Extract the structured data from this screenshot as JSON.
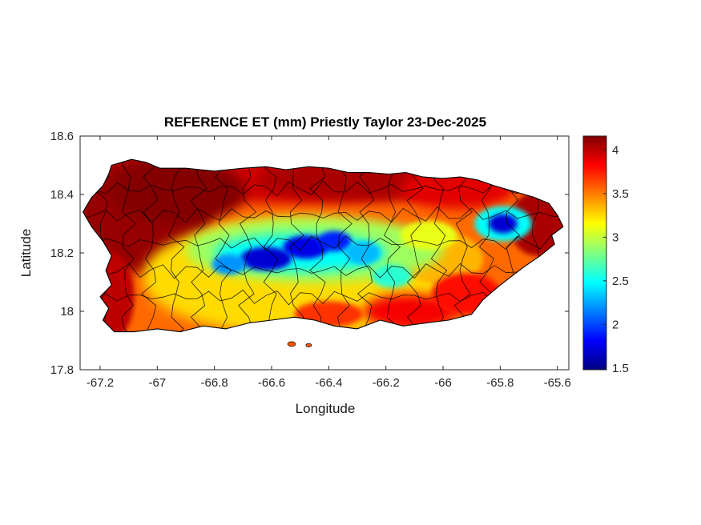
{
  "figure": {
    "title": "REFERENCE ET (mm) Priestly Taylor 23-Dec-2025",
    "xlabel": "Longitude",
    "ylabel": "Latitude",
    "background": "#ffffff"
  },
  "chart_data": {
    "type": "heatmap",
    "title": "REFERENCE ET (mm) Priestly Taylor 23-Dec-2025",
    "xlabel": "Longitude",
    "ylabel": "Latitude",
    "region": "Puerto Rico municipalities map",
    "xlim": [
      -67.27,
      -65.56
    ],
    "ylim": [
      17.8,
      18.6
    ],
    "xticks": [
      -67.2,
      -67,
      -66.8,
      -66.6,
      -66.4,
      -66.2,
      -66,
      -65.8,
      -65.6
    ],
    "xtick_labels": [
      "-67.2",
      "-67",
      "-66.8",
      "-66.6",
      "-66.4",
      "-66.2",
      "-66",
      "-65.8",
      "-65.6"
    ],
    "yticks": [
      17.8,
      18,
      18.2,
      18.4,
      18.6
    ],
    "ytick_labels": [
      "17.8",
      "18",
      "18.2",
      "18.4",
      "18.6"
    ],
    "grid": false,
    "colormap": "jet",
    "colorbar": {
      "position": "right",
      "min": 1.48,
      "max": 4.16,
      "ticks": [
        1.5,
        2,
        2.5,
        3,
        3.5,
        4
      ],
      "tick_labels": [
        "1.5",
        "2",
        "2.5",
        "3",
        "3.5",
        "4"
      ]
    },
    "axis_color": "#262626",
    "boundary_color": "#000000",
    "base_value": 3.55,
    "field_summary": [
      {
        "name": "north-coast-red-band",
        "lon": -66.55,
        "lat": 18.47,
        "rx": 0.75,
        "ry": 0.1,
        "v": 3.95
      },
      {
        "name": "north-central-dark-red",
        "lon": -66.3,
        "lat": 18.45,
        "rx": 0.35,
        "ry": 0.07,
        "v": 4.05
      },
      {
        "name": "west-dark-red-block",
        "lon": -67.05,
        "lat": 18.33,
        "rx": 0.24,
        "ry": 0.2,
        "v": 4.1
      },
      {
        "name": "northwest-darkest",
        "lon": -66.93,
        "lat": 18.41,
        "rx": 0.24,
        "ry": 0.11,
        "v": 4.15
      },
      {
        "name": "southwest-coast-red",
        "lon": -67.18,
        "lat": 18.05,
        "rx": 0.1,
        "ry": 0.16,
        "v": 4.0
      },
      {
        "name": "northeast-coast-red",
        "lon": -65.95,
        "lat": 18.42,
        "rx": 0.2,
        "ry": 0.07,
        "v": 3.9
      },
      {
        "name": "east-tip-dark-red",
        "lon": -65.67,
        "lat": 18.3,
        "rx": 0.1,
        "ry": 0.11,
        "v": 4.05
      },
      {
        "name": "southwest-central-orange",
        "lon": -66.85,
        "lat": 18.05,
        "rx": 0.18,
        "ry": 0.09,
        "v": 3.5
      },
      {
        "name": "central-yellow-field",
        "lon": -66.5,
        "lat": 18.12,
        "rx": 0.55,
        "ry": 0.2,
        "v": 3.25
      },
      {
        "name": "east-central-yellow",
        "lon": -66.0,
        "lat": 18.18,
        "rx": 0.14,
        "ry": 0.09,
        "v": 3.35
      },
      {
        "name": "cordillera-green-band",
        "lon": -66.45,
        "lat": 18.21,
        "rx": 0.45,
        "ry": 0.11,
        "v": 2.9
      },
      {
        "name": "cordillera-ne-green",
        "lon": -66.05,
        "lat": 18.26,
        "rx": 0.1,
        "ry": 0.05,
        "v": 3.1
      },
      {
        "name": "cordillera-cyan-band",
        "lon": -66.5,
        "lat": 18.2,
        "rx": 0.3,
        "ry": 0.065,
        "v": 2.5
      },
      {
        "name": "cordillera-deep-blue-1",
        "lon": -66.62,
        "lat": 18.18,
        "rx": 0.09,
        "ry": 0.04,
        "v": 1.7
      },
      {
        "name": "cordillera-deep-blue-2",
        "lon": -66.48,
        "lat": 18.22,
        "rx": 0.08,
        "ry": 0.04,
        "v": 1.75
      },
      {
        "name": "cordillera-blue-3",
        "lon": -66.38,
        "lat": 18.24,
        "rx": 0.06,
        "ry": 0.035,
        "v": 1.9
      },
      {
        "name": "cordillera-blue-west",
        "lon": -66.75,
        "lat": 18.16,
        "rx": 0.06,
        "ry": 0.035,
        "v": 2.2
      },
      {
        "name": "cordillera-blue-east",
        "lon": -66.28,
        "lat": 18.2,
        "rx": 0.06,
        "ry": 0.04,
        "v": 2.3
      },
      {
        "name": "cayey-cyan-spot",
        "lon": -66.18,
        "lat": 18.12,
        "rx": 0.07,
        "ry": 0.04,
        "v": 2.6
      },
      {
        "name": "el-yunque-cyan-ring",
        "lon": -65.79,
        "lat": 18.3,
        "rx": 0.1,
        "ry": 0.06,
        "v": 2.5
      },
      {
        "name": "el-yunque-blue-core",
        "lon": -65.79,
        "lat": 18.3,
        "rx": 0.05,
        "ry": 0.033,
        "v": 1.7
      },
      {
        "name": "south-coast-red-patch",
        "lon": -66.12,
        "lat": 18.0,
        "rx": 0.16,
        "ry": 0.06,
        "v": 3.85
      },
      {
        "name": "southeast-red-patch",
        "lon": -65.92,
        "lat": 18.06,
        "rx": 0.12,
        "ry": 0.07,
        "v": 3.8
      },
      {
        "name": "south-central-orange",
        "lon": -66.4,
        "lat": 17.99,
        "rx": 0.12,
        "ry": 0.045,
        "v": 3.7
      }
    ],
    "coastline": [
      [
        -67.16,
        18.5
      ],
      [
        -67.09,
        18.52
      ],
      [
        -67.04,
        18.51
      ],
      [
        -66.99,
        18.49
      ],
      [
        -66.9,
        18.49
      ],
      [
        -66.8,
        18.48
      ],
      [
        -66.7,
        18.49
      ],
      [
        -66.62,
        18.495
      ],
      [
        -66.55,
        18.485
      ],
      [
        -66.47,
        18.495
      ],
      [
        -66.4,
        18.49
      ],
      [
        -66.33,
        18.475
      ],
      [
        -66.26,
        18.475
      ],
      [
        -66.19,
        18.47
      ],
      [
        -66.13,
        18.475
      ],
      [
        -66.07,
        18.46
      ],
      [
        -66.0,
        18.455
      ],
      [
        -65.94,
        18.46
      ],
      [
        -65.88,
        18.45
      ],
      [
        -65.82,
        18.43
      ],
      [
        -65.75,
        18.41
      ],
      [
        -65.68,
        18.39
      ],
      [
        -65.63,
        18.37
      ],
      [
        -65.6,
        18.33
      ],
      [
        -65.58,
        18.29
      ],
      [
        -65.62,
        18.26
      ],
      [
        -65.61,
        18.23
      ],
      [
        -65.66,
        18.19
      ],
      [
        -65.72,
        18.15
      ],
      [
        -65.8,
        18.09
      ],
      [
        -65.86,
        18.04
      ],
      [
        -65.9,
        17.99
      ],
      [
        -65.98,
        17.97
      ],
      [
        -66.06,
        17.96
      ],
      [
        -66.14,
        17.95
      ],
      [
        -66.22,
        17.97
      ],
      [
        -66.3,
        17.94
      ],
      [
        -66.38,
        17.95
      ],
      [
        -66.45,
        17.97
      ],
      [
        -66.52,
        17.98
      ],
      [
        -66.6,
        17.97
      ],
      [
        -66.68,
        17.96
      ],
      [
        -66.76,
        17.94
      ],
      [
        -66.84,
        17.95
      ],
      [
        -66.92,
        17.93
      ],
      [
        -67.0,
        17.94
      ],
      [
        -67.08,
        17.93
      ],
      [
        -67.15,
        17.93
      ],
      [
        -67.19,
        17.97
      ],
      [
        -67.17,
        18.01
      ],
      [
        -67.2,
        18.05
      ],
      [
        -67.16,
        18.09
      ],
      [
        -67.18,
        18.14
      ],
      [
        -67.16,
        18.19
      ],
      [
        -67.19,
        18.24
      ],
      [
        -67.23,
        18.29
      ],
      [
        -67.26,
        18.34
      ],
      [
        -67.23,
        18.39
      ],
      [
        -67.19,
        18.43
      ],
      [
        -67.17,
        18.47
      ]
    ],
    "islets": [
      {
        "lon": -66.53,
        "lat": 17.888,
        "r": 0.014,
        "v": 3.6
      },
      {
        "lon": -66.47,
        "lat": 17.884,
        "r": 0.01,
        "v": 3.6
      }
    ],
    "boundaries": {
      "vertical_count": 20,
      "vertical_start_lon": -67.19,
      "vertical_spacing": 0.084,
      "horizontal_lats": [
        18.05,
        18.14,
        18.235,
        18.33,
        18.42
      ]
    }
  }
}
